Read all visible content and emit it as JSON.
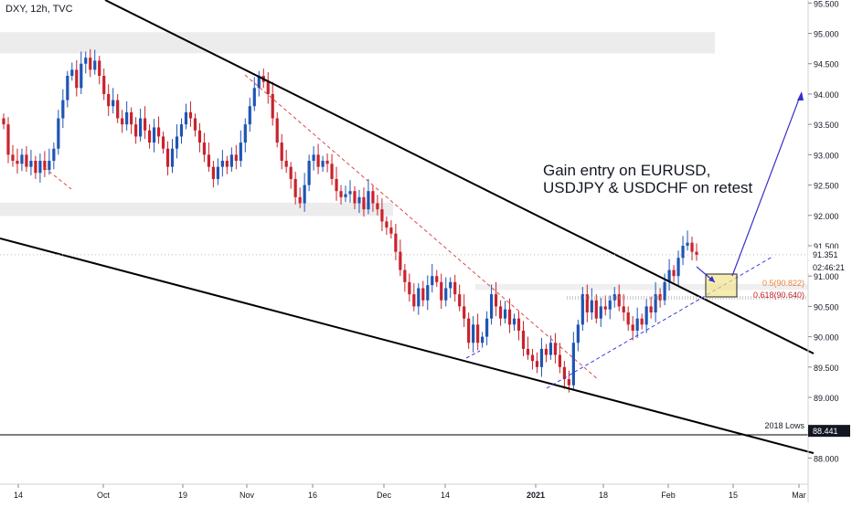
{
  "header": {
    "symbol": "DXY, 12h, TVC"
  },
  "annotation": {
    "line1": "Gain entry on EURUSD,",
    "line2": "USDJPY & USDCHF on retest"
  },
  "colors": {
    "up": "#1e55b5",
    "down": "#c8232c",
    "bg": "#ffffff",
    "axis": "#131722",
    "zone": "#ececec",
    "arrow": "#3730c9",
    "fib": "#e8823a",
    "trend_red": "#e04848",
    "trend_blue": "#3a3ae0",
    "box": "#f3e48e"
  },
  "chart_data": {
    "type": "candlestick",
    "title": "DXY, 12h, TVC",
    "ylim": [
      87.6,
      95.55
    ],
    "y_ticks": [
      "95.500",
      "95.000",
      "94.500",
      "94.000",
      "93.500",
      "93.000",
      "92.500",
      "92.000",
      "91.500",
      "91.000",
      "90.500",
      "90.000",
      "89.500",
      "89.000",
      "88.500",
      "88.000"
    ],
    "x_ticks": [
      "14",
      "Oct",
      "19",
      "Nov",
      "16",
      "Dec",
      "14",
      "2021",
      "18",
      "Feb",
      "15",
      "Mar"
    ],
    "price_labels": [
      {
        "text": "91.351",
        "value": 91.351,
        "style": "white"
      },
      {
        "text": "02:46:21",
        "value": 91.2,
        "style": "white"
      },
      {
        "text": "88.441",
        "value": 88.441,
        "style": "black"
      }
    ],
    "level_labels": [
      {
        "text": "0.5(90.822)",
        "value": 90.822,
        "color": "#e8823a"
      },
      {
        "text": "0.618(90.640)",
        "value": 90.64,
        "color": "#c8232c"
      },
      {
        "text": "2018 Lows",
        "value": 88.441,
        "color": "#131722"
      }
    ],
    "zones": [
      [
        94.67,
        95.02
      ],
      [
        91.99,
        92.21
      ]
    ],
    "closes": [
      93.5,
      93.0,
      92.9,
      92.85,
      93.0,
      92.8,
      92.9,
      92.7,
      92.9,
      92.75,
      92.9,
      93.1,
      93.6,
      93.9,
      94.3,
      94.4,
      94.1,
      94.5,
      94.6,
      94.4,
      94.55,
      94.3,
      94.0,
      93.8,
      93.9,
      93.6,
      93.5,
      93.7,
      93.5,
      93.3,
      93.6,
      93.4,
      93.2,
      93.45,
      93.3,
      93.1,
      92.8,
      93.1,
      93.3,
      93.5,
      93.7,
      93.6,
      93.4,
      93.2,
      93.0,
      92.8,
      92.6,
      92.8,
      92.9,
      92.8,
      93.0,
      92.9,
      93.2,
      93.5,
      93.8,
      94.1,
      94.3,
      94.2,
      94.0,
      93.6,
      93.2,
      92.9,
      92.8,
      92.6,
      92.3,
      92.2,
      92.5,
      92.9,
      93.0,
      92.8,
      92.9,
      92.85,
      92.6,
      92.4,
      92.3,
      92.35,
      92.4,
      92.2,
      92.3,
      92.1,
      92.4,
      92.2,
      92.1,
      91.9,
      91.8,
      91.7,
      91.4,
      91.1,
      90.9,
      90.7,
      90.5,
      90.8,
      90.6,
      90.85,
      91.0,
      90.9,
      90.6,
      90.8,
      90.9,
      90.7,
      90.5,
      90.3,
      89.9,
      90.2,
      89.9,
      90.0,
      90.3,
      90.7,
      90.5,
      90.3,
      90.45,
      90.2,
      90.3,
      90.1,
      89.8,
      89.7,
      89.6,
      89.5,
      89.8,
      89.7,
      89.9,
      89.7,
      89.5,
      89.3,
      89.2,
      89.9,
      90.2,
      90.7,
      90.4,
      90.6,
      90.3,
      90.5,
      90.45,
      90.6,
      90.7,
      90.5,
      90.4,
      90.2,
      90.1,
      90.3,
      90.2,
      90.5,
      90.4,
      90.7,
      90.6,
      90.9,
      91.1,
      91.0,
      91.3,
      91.5,
      91.55,
      91.4,
      91.351
    ]
  }
}
